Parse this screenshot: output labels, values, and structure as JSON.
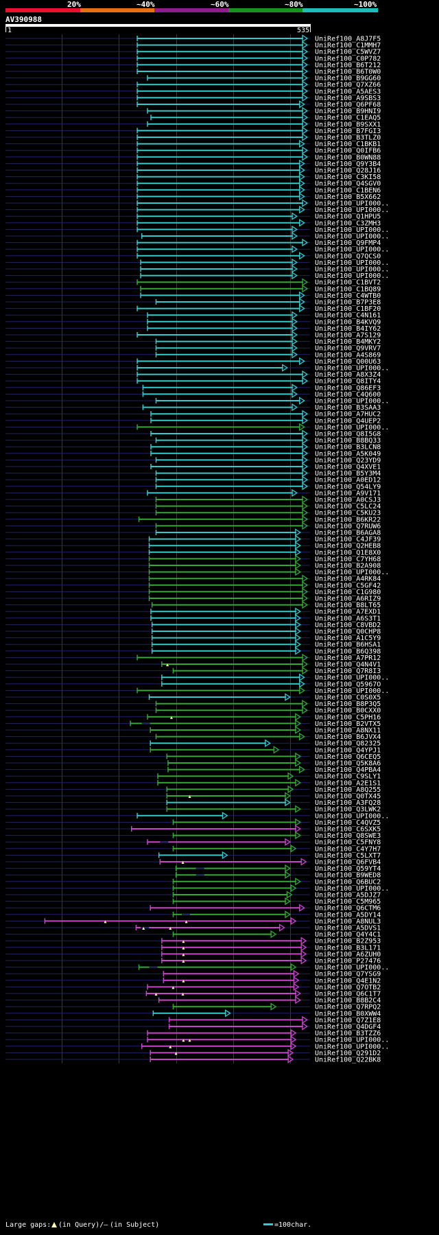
{
  "legend": {
    "thresholds": [
      "20%",
      "~40%",
      "~60%",
      "~80%",
      "~100%"
    ],
    "colors": [
      "#e8102a",
      "#e86e12",
      "#8f1d8c",
      "#17941f",
      "#1fbcbc"
    ]
  },
  "query": {
    "name": "AV390988",
    "start": "1",
    "end": "535",
    "length": 535
  },
  "identity_colors": {
    "cyan": "#33cccc",
    "green": "#33aa33",
    "magenta": "#cc44cc"
  },
  "footer": {
    "gaps_prefix": "Large gaps:",
    "gaps_query": "(in Query)/–",
    "gaps_subject": "(in Subject)",
    "scale_label": "=100char."
  },
  "chart_data": {
    "type": "alignment",
    "x_range": [
      1,
      535
    ],
    "hits": [
      {
        "name": "UniRef100_A8J7F5",
        "s": 232,
        "e": 538,
        "c": "cyan"
      },
      {
        "name": "UniRef100_C1MMH7",
        "s": 232,
        "e": 538,
        "c": "cyan"
      },
      {
        "name": "UniRef100_C5WVZ7",
        "s": 232,
        "e": 538,
        "c": "cyan"
      },
      {
        "name": "UniRef100_C0P782",
        "s": 232,
        "e": 538,
        "c": "cyan"
      },
      {
        "name": "UniRef100_B6T212",
        "s": 232,
        "e": 538,
        "c": "cyan"
      },
      {
        "name": "UniRef100_B6T0W0",
        "s": 232,
        "e": 538,
        "c": "cyan"
      },
      {
        "name": "UniRef100_B9GG60",
        "s": 250,
        "e": 538,
        "c": "cyan"
      },
      {
        "name": "UniRef100_Q7XZ66",
        "s": 232,
        "e": 538,
        "c": "cyan"
      },
      {
        "name": "UniRef100_A5AES3",
        "s": 232,
        "e": 538,
        "c": "cyan"
      },
      {
        "name": "UniRef100_A9SBS3",
        "s": 232,
        "e": 538,
        "c": "cyan"
      },
      {
        "name": "UniRef100_Q6PF68",
        "s": 232,
        "e": 525,
        "c": "cyan"
      },
      {
        "name": "UniRef100_B9HNI9",
        "s": 250,
        "e": 538,
        "c": "cyan"
      },
      {
        "name": "UniRef100_C1EAQ5",
        "s": 256,
        "e": 538,
        "c": "cyan"
      },
      {
        "name": "UniRef100_B9SXX1",
        "s": 250,
        "e": 538,
        "c": "cyan"
      },
      {
        "name": "UniRef100_B7FGI3",
        "s": 232,
        "e": 538,
        "c": "cyan"
      },
      {
        "name": "UniRef100_B3TLZ0",
        "s": 232,
        "e": 538,
        "c": "cyan"
      },
      {
        "name": "UniRef100_C1BKB1",
        "s": 232,
        "e": 525,
        "c": "cyan"
      },
      {
        "name": "UniRef100_Q0IFB6",
        "s": 232,
        "e": 538,
        "c": "cyan"
      },
      {
        "name": "UniRef100_B0WN88",
        "s": 232,
        "e": 538,
        "c": "cyan"
      },
      {
        "name": "UniRef100_Q9Y3B4",
        "s": 232,
        "e": 525,
        "c": "cyan"
      },
      {
        "name": "UniRef100_Q28J16",
        "s": 232,
        "e": 525,
        "c": "cyan"
      },
      {
        "name": "UniRef100_C3KI58",
        "s": 232,
        "e": 525,
        "c": "cyan"
      },
      {
        "name": "UniRef100_Q4SGV0",
        "s": 232,
        "e": 525,
        "c": "cyan"
      },
      {
        "name": "UniRef100_C1BEN6",
        "s": 232,
        "e": 525,
        "c": "cyan"
      },
      {
        "name": "UniRef100_B5X662",
        "s": 232,
        "e": 525,
        "c": "cyan"
      },
      {
        "name": "UniRef100_UPI000..",
        "s": 232,
        "e": 538,
        "c": "cyan"
      },
      {
        "name": "UniRef100_UPI000..",
        "s": 232,
        "e": 525,
        "c": "cyan"
      },
      {
        "name": "UniRef100_Q1HPU5",
        "s": 232,
        "e": 512,
        "c": "cyan"
      },
      {
        "name": "UniRef100_C3ZMH3",
        "s": 232,
        "e": 525,
        "c": "cyan"
      },
      {
        "name": "UniRef100_UPI000..",
        "s": 232,
        "e": 512,
        "c": "cyan"
      },
      {
        "name": "UniRef100_UPI000..",
        "s": 240,
        "e": 512,
        "c": "cyan"
      },
      {
        "name": "UniRef100_Q9FMP4",
        "s": 232,
        "e": 538,
        "c": "cyan"
      },
      {
        "name": "UniRef100_UPI000..",
        "s": 232,
        "e": 512,
        "c": "cyan"
      },
      {
        "name": "UniRef100_Q7QCS0",
        "s": 232,
        "e": 525,
        "c": "cyan"
      },
      {
        "name": "UniRef100_UPI000..",
        "s": 238,
        "e": 512,
        "c": "cyan"
      },
      {
        "name": "UniRef100_UPI000..",
        "s": 238,
        "e": 512,
        "c": "cyan"
      },
      {
        "name": "UniRef100_UPI000..",
        "s": 238,
        "e": 512,
        "c": "cyan"
      },
      {
        "name": "UniRef100_C1BVT2",
        "s": 232,
        "e": 538,
        "c": "green"
      },
      {
        "name": "UniRef100_C1BQ89",
        "s": 238,
        "e": 538,
        "c": "green"
      },
      {
        "name": "UniRef100_C4WTB0",
        "s": 238,
        "e": 525,
        "c": "cyan"
      },
      {
        "name": "UniRef100_B7P3E8",
        "s": 265,
        "e": 525,
        "c": "cyan"
      },
      {
        "name": "UniRef100_C1BF20",
        "s": 232,
        "e": 525,
        "c": "cyan"
      },
      {
        "name": "UniRef100_C4N161",
        "s": 250,
        "e": 512,
        "c": "cyan"
      },
      {
        "name": "UniRef100_B4KVQ9",
        "s": 250,
        "e": 512,
        "c": "cyan"
      },
      {
        "name": "UniRef100_B4IY62",
        "s": 250,
        "e": 512,
        "c": "cyan"
      },
      {
        "name": "UniRef100_A7S129",
        "s": 232,
        "e": 512,
        "c": "cyan"
      },
      {
        "name": "UniRef100_B4MKY2",
        "s": 265,
        "e": 512,
        "c": "cyan"
      },
      {
        "name": "UniRef100_Q9VRV7",
        "s": 265,
        "e": 512,
        "c": "cyan"
      },
      {
        "name": "UniRef100_A4S869",
        "s": 265,
        "e": 512,
        "c": "cyan"
      },
      {
        "name": "UniRef100_Q00U63",
        "s": 232,
        "e": 525,
        "c": "cyan"
      },
      {
        "name": "UniRef100_UPI000..",
        "s": 232,
        "e": 495,
        "c": "cyan"
      },
      {
        "name": "UniRef100_A8X3Z4",
        "s": 232,
        "e": 538,
        "c": "cyan"
      },
      {
        "name": "UniRef100_Q8ITY4",
        "s": 232,
        "e": 538,
        "c": "cyan"
      },
      {
        "name": "UniRef100_Q86EF3",
        "s": 242,
        "e": 512,
        "c": "cyan"
      },
      {
        "name": "UniRef100_C4Q600",
        "s": 242,
        "e": 512,
        "c": "cyan"
      },
      {
        "name": "UniRef100_UPI000..",
        "s": 265,
        "e": 525,
        "c": "cyan"
      },
      {
        "name": "UniRef100_B3SAA3",
        "s": 242,
        "e": 512,
        "c": "cyan"
      },
      {
        "name": "UniRef100_A7HUC2",
        "s": 256,
        "e": 538,
        "c": "cyan"
      },
      {
        "name": "UniRef100_Q4UEP2",
        "s": 256,
        "e": 538,
        "c": "cyan"
      },
      {
        "name": "UniRef100_UPI000..",
        "s": 232,
        "e": 525,
        "c": "green"
      },
      {
        "name": "UniRef100_Q8I5G8",
        "s": 256,
        "e": 538,
        "c": "cyan"
      },
      {
        "name": "UniRef100_B8BQ33",
        "s": 265,
        "e": 538,
        "c": "cyan"
      },
      {
        "name": "UniRef100_B3LCN8",
        "s": 256,
        "e": 538,
        "c": "cyan"
      },
      {
        "name": "UniRef100_A5K049",
        "s": 256,
        "e": 538,
        "c": "cyan"
      },
      {
        "name": "UniRef100_Q23YD9",
        "s": 265,
        "e": 538,
        "c": "cyan"
      },
      {
        "name": "UniRef100_Q4XVE1",
        "s": 256,
        "e": 538,
        "c": "cyan"
      },
      {
        "name": "UniRef100_B5Y3M4",
        "s": 265,
        "e": 538,
        "c": "cyan"
      },
      {
        "name": "UniRef100_A0ED12",
        "s": 265,
        "e": 538,
        "c": "cyan"
      },
      {
        "name": "UniRef100_Q54LY9",
        "s": 265,
        "e": 538,
        "c": "cyan"
      },
      {
        "name": "UniRef100_A9V171",
        "s": 250,
        "e": 512,
        "c": "cyan"
      },
      {
        "name": "UniRef100_A0CSJ3",
        "s": 265,
        "e": 538,
        "c": "green"
      },
      {
        "name": "UniRef100_C5LC24",
        "s": 265,
        "e": 538,
        "c": "green"
      },
      {
        "name": "UniRef100_C5KU23",
        "s": 265,
        "e": 538,
        "c": "green"
      },
      {
        "name": "UniRef100_B6KR22",
        "s": 235,
        "e": 535,
        "c": "green"
      },
      {
        "name": "UniRef100_Q7RUW6",
        "s": 265,
        "e": 535,
        "c": "green"
      },
      {
        "name": "UniRef100_B6AGA8",
        "s": 265,
        "e": 518,
        "c": "cyan"
      },
      {
        "name": "UniRef100_C4JF39",
        "s": 253,
        "e": 518,
        "c": "cyan"
      },
      {
        "name": "UniRef100_Q2HEB8",
        "s": 253,
        "e": 518,
        "c": "cyan"
      },
      {
        "name": "UniRef100_Q1E8X0",
        "s": 253,
        "e": 518,
        "c": "cyan"
      },
      {
        "name": "UniRef100_C7YH68",
        "s": 253,
        "e": 518,
        "c": "green"
      },
      {
        "name": "UniRef100_B2A908",
        "s": 253,
        "e": 518,
        "c": "green"
      },
      {
        "name": "UniRef100_UPI000..",
        "s": 253,
        "e": 518,
        "c": "green"
      },
      {
        "name": "UniRef100_A4RK84",
        "s": 253,
        "e": 533,
        "c": "green"
      },
      {
        "name": "UniRef100_C5GF42",
        "s": 253,
        "e": 533,
        "c": "green"
      },
      {
        "name": "UniRef100_C1G980",
        "s": 253,
        "e": 533,
        "c": "green"
      },
      {
        "name": "UniRef100_A6RIZ9",
        "s": 253,
        "e": 533,
        "c": "green"
      },
      {
        "name": "UniRef100_B8LT65",
        "s": 258,
        "e": 533,
        "c": "green"
      },
      {
        "name": "UniRef100_A7EXD1",
        "s": 256,
        "e": 518,
        "c": "cyan"
      },
      {
        "name": "UniRef100_A6S3T1",
        "s": 256,
        "e": 518,
        "c": "cyan"
      },
      {
        "name": "UniRef100_C8VBD2",
        "s": 258,
        "e": 518,
        "c": "cyan"
      },
      {
        "name": "UniRef100_Q0CHP8",
        "s": 258,
        "e": 518,
        "c": "cyan"
      },
      {
        "name": "UniRef100_A1C5Y9",
        "s": 258,
        "e": 518,
        "c": "cyan"
      },
      {
        "name": "UniRef100_B6HSA1",
        "s": 258,
        "e": 518,
        "c": "cyan"
      },
      {
        "name": "UniRef100_B6Q398",
        "s": 258,
        "e": 518,
        "c": "cyan"
      },
      {
        "name": "UniRef100_A7PR12",
        "s": 232,
        "e": 538,
        "c": "green"
      },
      {
        "name": "UniRef100_Q4N4V1",
        "s": 275,
        "e": 538,
        "c": "green",
        "gq": [
          285
        ]
      },
      {
        "name": "UniRef100_Q7R8I3",
        "s": 295,
        "e": 538,
        "c": "green"
      },
      {
        "name": "UniRef100_UPI000..",
        "s": 275,
        "e": 525,
        "c": "cyan"
      },
      {
        "name": "UniRef100_Q5967O",
        "s": 275,
        "e": 525,
        "c": "cyan"
      },
      {
        "name": "UniRef100_UPI000..",
        "s": 232,
        "e": 525,
        "c": "green"
      },
      {
        "name": "UniRef100_C0S0X5",
        "s": 253,
        "e": 500,
        "c": "cyan"
      },
      {
        "name": "UniRef100_B8P3Q5",
        "s": 265,
        "e": 530,
        "c": "green"
      },
      {
        "name": "UniRef100_B0CXX0",
        "s": 265,
        "e": 530,
        "c": "green"
      },
      {
        "name": "UniRef100_C5PH16",
        "s": 250,
        "e": 518,
        "c": "green",
        "gq": [
          292
        ]
      },
      {
        "name": "UniRef100_B2VTX5",
        "s": 220,
        "e": 518,
        "c": "green",
        "gs": [
          240
        ]
      },
      {
        "name": "UniRef100_A8NX11",
        "s": 255,
        "e": 518,
        "c": "green"
      },
      {
        "name": "UniRef100_B6JVX4",
        "s": 265,
        "e": 525,
        "c": "green"
      },
      {
        "name": "UniRef100_Q82325",
        "s": 255,
        "e": 465,
        "c": "cyan"
      },
      {
        "name": "UniRef100_Q4YPJ1",
        "s": 255,
        "e": 480,
        "c": "green"
      },
      {
        "name": "UniRef100_Q6CEQ5",
        "s": 284,
        "e": 518,
        "c": "green"
      },
      {
        "name": "UniRef100_Q5K8A6",
        "s": 286,
        "e": 518,
        "c": "green"
      },
      {
        "name": "UniRef100_Q4PBA4",
        "s": 286,
        "e": 525,
        "c": "green"
      },
      {
        "name": "UniRef100_C9SLY1",
        "s": 268,
        "e": 505,
        "c": "green"
      },
      {
        "name": "UniRef100_A2E1S1",
        "s": 268,
        "e": 518,
        "c": "green"
      },
      {
        "name": "UniRef100_A8Q255",
        "s": 284,
        "e": 505,
        "c": "green"
      },
      {
        "name": "UniRef100_Q0TX45",
        "s": 284,
        "e": 500,
        "c": "green",
        "gq": [
          324
        ]
      },
      {
        "name": "UniRef100_A3FQ28",
        "s": 284,
        "e": 500,
        "c": "cyan"
      },
      {
        "name": "UniRef100_Q3LWK2",
        "s": 284,
        "e": 518,
        "c": "green"
      },
      {
        "name": "UniRef100_UPI000..",
        "s": 232,
        "e": 390,
        "c": "cyan"
      },
      {
        "name": "UniRef100_C4QVZ5",
        "s": 295,
        "e": 518,
        "c": "green"
      },
      {
        "name": "UniRef100_C6SXK5",
        "s": 222,
        "e": 518,
        "c": "magenta"
      },
      {
        "name": "UniRef100_Q8SWE3",
        "s": 295,
        "e": 518,
        "c": "green"
      },
      {
        "name": "UniRef100_C5FNY8",
        "s": 250,
        "e": 500,
        "c": "magenta",
        "gs": [
          272
        ]
      },
      {
        "name": "UniRef100_C4Y7H7",
        "s": 295,
        "e": 510,
        "c": "green"
      },
      {
        "name": "UniRef100_C5LXT7",
        "s": 270,
        "e": 390,
        "c": "cyan"
      },
      {
        "name": "UniRef100_Q6FVB4",
        "s": 272,
        "e": 528,
        "c": "magenta",
        "gq": [
          312
        ]
      },
      {
        "name": "UniRef100_Q59YT4",
        "s": 300,
        "e": 500,
        "c": "green",
        "gs": [
          335
        ]
      },
      {
        "name": "UniRef100_B9WED8",
        "s": 300,
        "e": 500,
        "c": "green",
        "gs": [
          335
        ]
      },
      {
        "name": "UniRef100_Q6BUC2",
        "s": 295,
        "e": 518,
        "c": "green"
      },
      {
        "name": "UniRef100_UPI000..",
        "s": 295,
        "e": 510,
        "c": "green"
      },
      {
        "name": "UniRef100_A5DJZ7",
        "s": 295,
        "e": 503,
        "c": "green"
      },
      {
        "name": "UniRef100_C5M965",
        "s": 295,
        "e": 500,
        "c": "green"
      },
      {
        "name": "UniRef100_Q6CTM6",
        "s": 255,
        "e": 525,
        "c": "magenta"
      },
      {
        "name": "UniRef100_A5DY14",
        "s": 295,
        "e": 500,
        "c": "green",
        "gs": [
          310
        ]
      },
      {
        "name": "UniRef100_A8NUL3",
        "s": 70,
        "e": 510,
        "c": "magenta",
        "gq": [
          176,
          318
        ]
      },
      {
        "name": "UniRef100_A5DVS1",
        "s": 230,
        "e": 490,
        "c": "magenta",
        "gq": [
          243,
          290
        ],
        "gs": [
          238
        ]
      },
      {
        "name": "UniRef100_Q4Y4C1",
        "s": 295,
        "e": 475,
        "c": "green"
      },
      {
        "name": "UniRef100_B2Z953",
        "s": 275,
        "e": 528,
        "c": "magenta",
        "gq": [
          313
        ]
      },
      {
        "name": "UniRef100_B3L171",
        "s": 275,
        "e": 528,
        "c": "magenta",
        "gq": [
          313
        ]
      },
      {
        "name": "UniRef100_A6ZUH0",
        "s": 275,
        "e": 528,
        "c": "magenta",
        "gq": [
          313
        ]
      },
      {
        "name": "UniRef100_P27476",
        "s": 275,
        "e": 528,
        "c": "magenta",
        "gq": [
          313
        ]
      },
      {
        "name": "UniRef100_UPI000..",
        "s": 235,
        "e": 510,
        "c": "green",
        "gs": [
          253
        ]
      },
      {
        "name": "UniRef100_Q7YSG9",
        "s": 278,
        "e": 515,
        "c": "magenta"
      },
      {
        "name": "UniRef100_Q4E1N2",
        "s": 278,
        "e": 515,
        "c": "magenta",
        "gq": [
          313
        ]
      },
      {
        "name": "UniRef100_Q7OTB2",
        "s": 250,
        "e": 515,
        "c": "magenta",
        "gq": [
          295
        ]
      },
      {
        "name": "UniRef100_Q6C1T7",
        "s": 248,
        "e": 518,
        "c": "magenta",
        "gq": [
          265,
          312
        ]
      },
      {
        "name": "UniRef100_B8B2C4",
        "s": 270,
        "e": 518,
        "c": "magenta"
      },
      {
        "name": "UniRef100_Q7RPQ2",
        "s": 295,
        "e": 475,
        "c": "green"
      },
      {
        "name": "UniRef100_B0XWW4",
        "s": 260,
        "e": 395,
        "c": "cyan"
      },
      {
        "name": "UniRef100_Q7Z1E8",
        "s": 288,
        "e": 530,
        "c": "magenta"
      },
      {
        "name": "UniRef100_Q4DGF4",
        "s": 288,
        "e": 530,
        "c": "magenta"
      },
      {
        "name": "UniRef100_B3TZZ6",
        "s": 250,
        "e": 510,
        "c": "magenta"
      },
      {
        "name": "UniRef100_UPI000..",
        "s": 250,
        "e": 510,
        "c": "magenta",
        "gq": [
          313,
          324
        ]
      },
      {
        "name": "UniRef100_UPI000..",
        "s": 240,
        "e": 510,
        "c": "magenta",
        "gq": [
          290
        ]
      },
      {
        "name": "UniRef100_Q291D2",
        "s": 255,
        "e": 505,
        "c": "magenta",
        "gq": [
          300
        ]
      },
      {
        "name": "UniRef100_Q22BK8",
        "s": 255,
        "e": 505,
        "c": "magenta"
      }
    ]
  }
}
